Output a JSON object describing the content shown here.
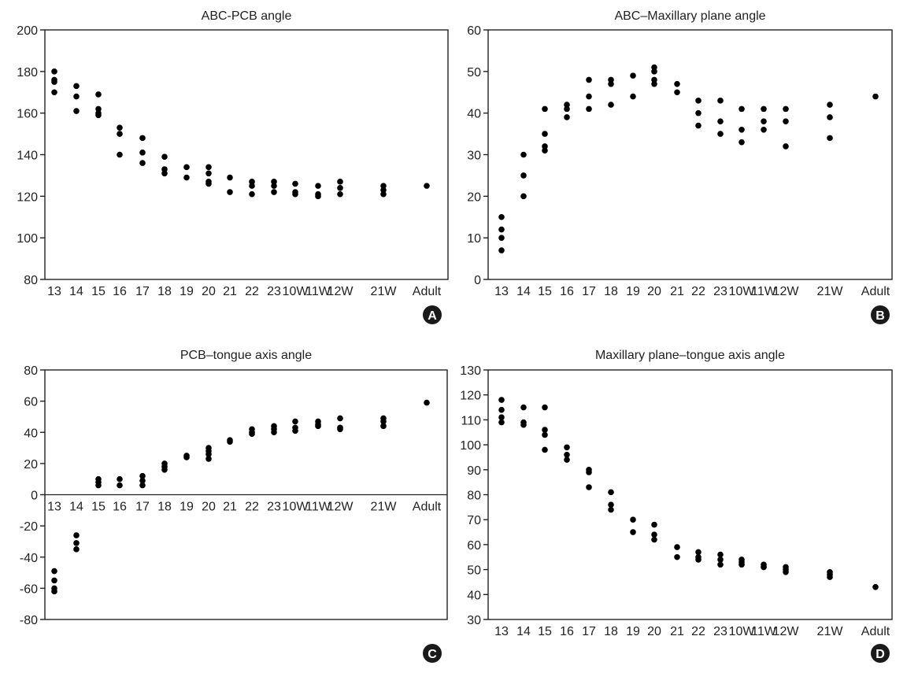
{
  "colors": {
    "axis": "#222222",
    "point": "#000000",
    "badge": "#1a1a1a",
    "badge_text": "#ffffff"
  },
  "chart_data": [
    {
      "type": "scatter",
      "panel_label": "A",
      "title": "ABC-PCB angle",
      "xlabel": "",
      "ylabel": "",
      "ylim": [
        80,
        200
      ],
      "yticks": [
        80,
        100,
        120,
        140,
        160,
        180,
        200
      ],
      "categories": [
        "13",
        "14",
        "15",
        "16",
        "17",
        "18",
        "19",
        "20",
        "21",
        "22",
        "23",
        "10W",
        "11W",
        "12W",
        "21W",
        "Adult"
      ],
      "points": [
        {
          "cat": "13",
          "values": [
            180,
            176,
            175,
            170
          ]
        },
        {
          "cat": "14",
          "values": [
            173,
            168,
            161
          ]
        },
        {
          "cat": "15",
          "values": [
            169,
            162,
            160,
            159
          ]
        },
        {
          "cat": "16",
          "values": [
            153,
            150,
            140
          ]
        },
        {
          "cat": "17",
          "values": [
            148,
            141,
            136
          ]
        },
        {
          "cat": "18",
          "values": [
            139,
            133,
            131
          ]
        },
        {
          "cat": "19",
          "values": [
            134,
            129
          ]
        },
        {
          "cat": "20",
          "values": [
            134,
            131,
            127,
            126
          ]
        },
        {
          "cat": "21",
          "values": [
            129,
            122
          ]
        },
        {
          "cat": "22",
          "values": [
            127,
            125,
            121
          ]
        },
        {
          "cat": "23",
          "values": [
            127,
            125,
            122
          ]
        },
        {
          "cat": "10W",
          "values": [
            126,
            122,
            121
          ]
        },
        {
          "cat": "11W",
          "values": [
            125,
            121,
            120
          ]
        },
        {
          "cat": "12W",
          "values": [
            127,
            124,
            121
          ]
        },
        {
          "cat": "21W",
          "values": [
            125,
            123,
            121
          ]
        },
        {
          "cat": "Adult",
          "values": [
            125
          ]
        }
      ]
    },
    {
      "type": "scatter",
      "panel_label": "B",
      "title": "ABC–Maxillary plane angle",
      "xlabel": "",
      "ylabel": "",
      "ylim": [
        0,
        60
      ],
      "yticks": [
        0,
        10,
        20,
        30,
        40,
        50,
        60
      ],
      "categories": [
        "13",
        "14",
        "15",
        "16",
        "17",
        "18",
        "19",
        "20",
        "21",
        "22",
        "23",
        "10W",
        "11W",
        "12W",
        "21W",
        "Adult"
      ],
      "points": [
        {
          "cat": "13",
          "values": [
            15,
            12,
            10,
            7
          ]
        },
        {
          "cat": "14",
          "values": [
            30,
            25,
            20
          ]
        },
        {
          "cat": "15",
          "values": [
            41,
            35,
            32,
            31
          ]
        },
        {
          "cat": "16",
          "values": [
            42,
            41,
            39
          ]
        },
        {
          "cat": "17",
          "values": [
            48,
            44,
            41
          ]
        },
        {
          "cat": "18",
          "values": [
            48,
            47,
            42
          ]
        },
        {
          "cat": "19",
          "values": [
            49,
            44
          ]
        },
        {
          "cat": "20",
          "values": [
            51,
            50,
            48,
            47
          ]
        },
        {
          "cat": "21",
          "values": [
            47,
            45
          ]
        },
        {
          "cat": "22",
          "values": [
            43,
            40,
            37
          ]
        },
        {
          "cat": "23",
          "values": [
            43,
            38,
            35
          ]
        },
        {
          "cat": "10W",
          "values": [
            41,
            36,
            33
          ]
        },
        {
          "cat": "11W",
          "values": [
            41,
            38,
            36
          ]
        },
        {
          "cat": "12W",
          "values": [
            41,
            38,
            32
          ]
        },
        {
          "cat": "21W",
          "values": [
            42,
            39,
            34
          ]
        },
        {
          "cat": "Adult",
          "values": [
            44
          ]
        }
      ]
    },
    {
      "type": "scatter",
      "panel_label": "C",
      "title": "PCB–tongue axis angle",
      "xlabel": "",
      "ylabel": "",
      "ylim": [
        -80,
        80
      ],
      "yticks": [
        -80,
        -60,
        -40,
        -20,
        0,
        20,
        40,
        60,
        80
      ],
      "category_labels_at_zero": true,
      "categories": [
        "13",
        "14",
        "15",
        "16",
        "17",
        "18",
        "19",
        "20",
        "21",
        "22",
        "23",
        "10W",
        "11W",
        "12W",
        "21W",
        "Adult"
      ],
      "points": [
        {
          "cat": "13",
          "values": [
            -49,
            -55,
            -60,
            -62
          ]
        },
        {
          "cat": "14",
          "values": [
            -26,
            -31,
            -35
          ]
        },
        {
          "cat": "15",
          "values": [
            10,
            8,
            6
          ]
        },
        {
          "cat": "16",
          "values": [
            10,
            6
          ]
        },
        {
          "cat": "17",
          "values": [
            12,
            9,
            6
          ]
        },
        {
          "cat": "18",
          "values": [
            20,
            18,
            16
          ]
        },
        {
          "cat": "19",
          "values": [
            25,
            24
          ]
        },
        {
          "cat": "20",
          "values": [
            30,
            28,
            26,
            23
          ]
        },
        {
          "cat": "21",
          "values": [
            35,
            34
          ]
        },
        {
          "cat": "22",
          "values": [
            42,
            40,
            39
          ]
        },
        {
          "cat": "23",
          "values": [
            44,
            42,
            40
          ]
        },
        {
          "cat": "10W",
          "values": [
            47,
            43,
            41
          ]
        },
        {
          "cat": "11W",
          "values": [
            47,
            45,
            44
          ]
        },
        {
          "cat": "12W",
          "values": [
            49,
            43,
            42
          ]
        },
        {
          "cat": "21W",
          "values": [
            49,
            47,
            44
          ]
        },
        {
          "cat": "Adult",
          "values": [
            59
          ]
        }
      ]
    },
    {
      "type": "scatter",
      "panel_label": "D",
      "title": "Maxillary plane–tongue axis angle",
      "xlabel": "",
      "ylabel": "",
      "ylim": [
        30,
        130
      ],
      "yticks": [
        30,
        40,
        50,
        60,
        70,
        80,
        90,
        100,
        110,
        120,
        130
      ],
      "categories": [
        "13",
        "14",
        "15",
        "16",
        "17",
        "18",
        "19",
        "20",
        "21",
        "22",
        "23",
        "10W",
        "11W",
        "12W",
        "21W",
        "Adult"
      ],
      "points": [
        {
          "cat": "13",
          "values": [
            118,
            114,
            111,
            109
          ]
        },
        {
          "cat": "14",
          "values": [
            115,
            109,
            108
          ]
        },
        {
          "cat": "15",
          "values": [
            115,
            106,
            104,
            98
          ]
        },
        {
          "cat": "16",
          "values": [
            99,
            96,
            94
          ]
        },
        {
          "cat": "17",
          "values": [
            90,
            89,
            83
          ]
        },
        {
          "cat": "18",
          "values": [
            81,
            76,
            74
          ]
        },
        {
          "cat": "19",
          "values": [
            70,
            65
          ]
        },
        {
          "cat": "20",
          "values": [
            68,
            64,
            62
          ]
        },
        {
          "cat": "21",
          "values": [
            59,
            55
          ]
        },
        {
          "cat": "22",
          "values": [
            57,
            55,
            54
          ]
        },
        {
          "cat": "23",
          "values": [
            56,
            54,
            52
          ]
        },
        {
          "cat": "10W",
          "values": [
            54,
            53,
            52
          ]
        },
        {
          "cat": "11W",
          "values": [
            52,
            51,
            51
          ]
        },
        {
          "cat": "12W",
          "values": [
            51,
            50,
            49
          ]
        },
        {
          "cat": "21W",
          "values": [
            49,
            48,
            47
          ]
        },
        {
          "cat": "Adult",
          "values": [
            43
          ]
        }
      ]
    }
  ]
}
